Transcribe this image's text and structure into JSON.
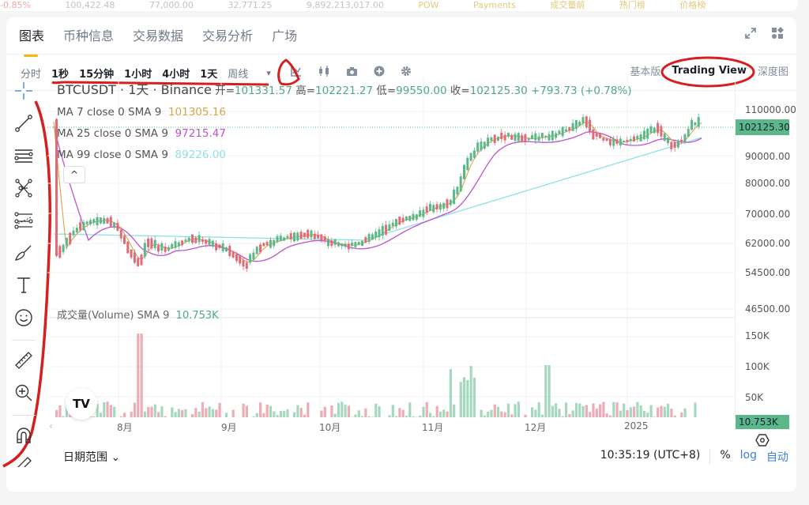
{
  "top_strip": {
    "values": [
      "-0.85%",
      "100,422.48",
      "77,000.00",
      "32,771.25",
      "9,892,213,017.00"
    ],
    "links": [
      "POW",
      "Payments",
      "成交量前",
      "热门榜",
      "价格榜"
    ]
  },
  "tabs": [
    {
      "label": "图表",
      "active": true
    },
    {
      "label": "币种信息",
      "active": false
    },
    {
      "label": "交易数据",
      "active": false
    },
    {
      "label": "交易分析",
      "active": false
    },
    {
      "label": "广场",
      "active": false
    }
  ],
  "tab_icons": [
    "expand-icon",
    "layout-grid-icon"
  ],
  "toolbar": {
    "timeframes": [
      {
        "label": "分时",
        "bold": false
      },
      {
        "label": "1秒",
        "bold": true
      },
      {
        "label": "15分钟",
        "bold": true
      },
      {
        "label": "1小时",
        "bold": true
      },
      {
        "label": "4小时",
        "bold": true
      },
      {
        "label": "1天",
        "bold": true
      },
      {
        "label": "周线",
        "bold": false
      }
    ],
    "dropdown_glyph": "▾",
    "tools": [
      "indicator-icon",
      "candle-type-icon",
      "camera-icon",
      "add-icon",
      "settings-icon"
    ]
  },
  "view_switch": {
    "basic": "基本版",
    "tradingview": "Trading View",
    "depth": "深度图"
  },
  "legend": {
    "symbol": "BTCUSDT · 1天 · Binance",
    "open_label": "开=",
    "open": "101331.57",
    "high_label": "高=",
    "high": "102221.27",
    "low_label": "低=",
    "low": "99550.00",
    "close_label": "收=",
    "close": "102125.30",
    "change": "+793.73 (+0.78%)",
    "ma7_label": "MA 7 close 0 SMA 9",
    "ma7": "101305.16",
    "ma25_label": "MA 25 close 0 SMA 9",
    "ma25": "97215.47",
    "ma99_label": "MA 99 close 0 SMA 9",
    "ma99": "89226.00",
    "collapse_glyph": "^"
  },
  "volume_legend": {
    "label": "成交量(Volume) SMA 9",
    "value": "10.753K"
  },
  "price_axis": {
    "labels": [
      "110000.00",
      "90000.00",
      "80000.00",
      "70000.00",
      "62000.00",
      "54500.00",
      "46500.00"
    ],
    "current": "102125.30",
    "volume_labels": [
      "150K",
      "100K",
      "50K"
    ],
    "volume_current": "10.753K"
  },
  "time_axis": [
    "8月",
    "9月",
    "10月",
    "11月",
    "12月",
    "2025"
  ],
  "bottom_bar": {
    "date_range": "日期范围 ⌄",
    "time": "10:35:19 (UTC+8)",
    "percent": "%",
    "log": "log",
    "auto": "自动"
  },
  "tv_logo": "TV",
  "colors": {
    "up": "#5cb88a",
    "down": "#e06a78",
    "ma7": "#d7a54a",
    "ma25": "#c04fd0",
    "ma99": "#8fe0e8",
    "accent": "#f0b90b",
    "annotation": "#d62020"
  }
}
